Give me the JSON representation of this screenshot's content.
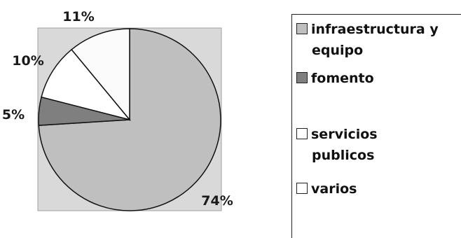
{
  "chart_data": {
    "type": "pie",
    "title": "",
    "categories": [
      "infraestructura y equipo",
      "fomento",
      "servicios publicos",
      "varios"
    ],
    "values": [
      74,
      5,
      10,
      11
    ],
    "data_labels": [
      "74%",
      "5%",
      "10%",
      "11%"
    ],
    "colors": [
      "#bfbfbf",
      "#7f7f7f",
      "#ffffff",
      "#fbfbfb"
    ],
    "legend": {
      "placement": "right",
      "entries": [
        {
          "line1": "infraestructura y",
          "line2": "equipo"
        },
        {
          "line1": "fomento",
          "line2": ""
        },
        {
          "line1": "servicios",
          "line2": "publicos"
        },
        {
          "line1": "varios",
          "line2": ""
        }
      ]
    },
    "plot_background": "#d9d9d9"
  }
}
